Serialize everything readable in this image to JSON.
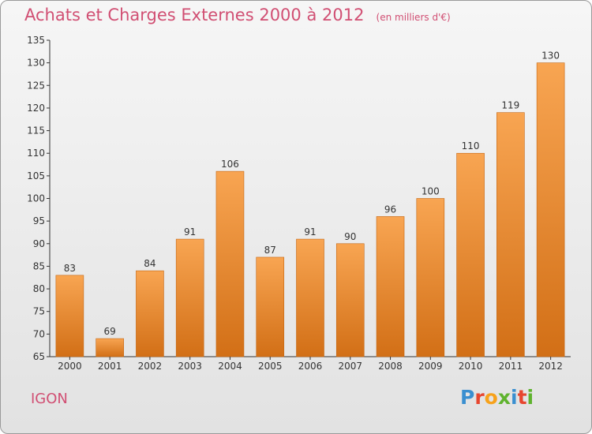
{
  "title": "Achats et Charges Externes 2000 à 2012",
  "unit": "(en milliers d'€)",
  "commune": "IGON",
  "logo": {
    "letters": [
      "P",
      "r",
      "o",
      "x",
      "i",
      "t",
      "i"
    ],
    "colors": [
      "#3a8fd0",
      "#e7462f",
      "#f7a21b",
      "#5fb32e",
      "#3a8fd0",
      "#e7462f",
      "#5fb32e"
    ]
  },
  "colors": {
    "accent": "#d14f73",
    "bar_light": "#f8a552",
    "bar_dark": "#d26f16",
    "axis": "#333333"
  },
  "chart_data": {
    "type": "bar",
    "categories": [
      "2000",
      "2001",
      "2002",
      "2003",
      "2004",
      "2005",
      "2006",
      "2007",
      "2008",
      "2009",
      "2010",
      "2011",
      "2012"
    ],
    "values": [
      83,
      69,
      84,
      91,
      106,
      87,
      91,
      90,
      96,
      100,
      110,
      119,
      130
    ],
    "ylim": [
      65,
      135
    ],
    "yticks": [
      65,
      70,
      75,
      80,
      85,
      90,
      95,
      100,
      105,
      110,
      115,
      120,
      125,
      130,
      135
    ],
    "grid": false,
    "data_labels": true
  }
}
